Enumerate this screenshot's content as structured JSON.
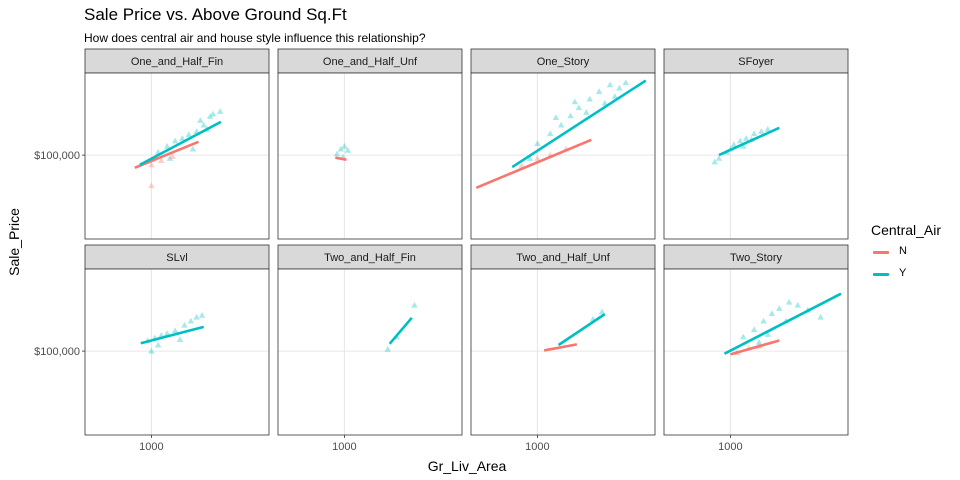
{
  "chart_data": {
    "type": "scatter",
    "title": "Sale Price vs. Above Ground Sq.Ft",
    "subtitle": "How does central air and house style influence this relationship?",
    "xlabel": "Gr_Liv_Area",
    "ylabel": "Sale_Price",
    "x_scale": "log",
    "y_scale": "log",
    "xlim": [
      390,
      5300
    ],
    "ylim": [
      27000,
      360000
    ],
    "x_ticks": [
      {
        "value": 1000,
        "label": "1000"
      }
    ],
    "y_ticks": [
      {
        "value": 100000,
        "label": "$100,000"
      }
    ],
    "grid": true,
    "facet_layout": {
      "rows": 2,
      "cols": 4
    },
    "legend": {
      "title": "Central_Air",
      "position": "right",
      "entries": [
        {
          "name": "N",
          "color": "#F8766D"
        },
        {
          "name": "Y",
          "color": "#00BFC4"
        }
      ]
    },
    "colors": {
      "N": "#F8766D",
      "Y": "#00BFC4"
    },
    "panels": [
      {
        "name": "One_and_Half_Fin",
        "lines": [
          {
            "group": "N",
            "x": [
              790,
              1950
            ],
            "y": [
              82000,
              123000
            ]
          },
          {
            "group": "Y",
            "x": [
              850,
              2680
            ],
            "y": [
              86000,
              168000
            ]
          }
        ],
        "points": [
          {
            "group": "Y",
            "x": 1100,
            "y": 105000
          },
          {
            "group": "Y",
            "x": 1250,
            "y": 115000
          },
          {
            "group": "Y",
            "x": 1400,
            "y": 125000
          },
          {
            "group": "Y",
            "x": 1550,
            "y": 130000
          },
          {
            "group": "Y",
            "x": 1700,
            "y": 138000
          },
          {
            "group": "Y",
            "x": 1900,
            "y": 145000
          },
          {
            "group": "Y",
            "x": 2100,
            "y": 160000
          },
          {
            "group": "Y",
            "x": 2400,
            "y": 190000
          },
          {
            "group": "Y",
            "x": 2650,
            "y": 198000
          },
          {
            "group": "Y",
            "x": 2300,
            "y": 183000
          },
          {
            "group": "Y",
            "x": 2000,
            "y": 172000
          },
          {
            "group": "Y",
            "x": 1300,
            "y": 95000
          },
          {
            "group": "Y",
            "x": 1800,
            "y": 110000
          },
          {
            "group": "Y",
            "x": 2200,
            "y": 150000
          },
          {
            "group": "N",
            "x": 1000,
            "y": 86000
          },
          {
            "group": "N",
            "x": 1150,
            "y": 92000
          },
          {
            "group": "N",
            "x": 1350,
            "y": 98000
          },
          {
            "group": "N",
            "x": 1000,
            "y": 62000
          }
        ]
      },
      {
        "name": "One_and_Half_Unf",
        "lines": [
          {
            "group": "N",
            "x": 880,
            "y": [
              96000,
              93000
            ],
            "x_end": 1030
          }
        ],
        "points": [
          {
            "group": "Y",
            "x": 900,
            "y": 102000
          },
          {
            "group": "Y",
            "x": 950,
            "y": 110000
          },
          {
            "group": "Y",
            "x": 1000,
            "y": 115000
          },
          {
            "group": "Y",
            "x": 1050,
            "y": 108000
          },
          {
            "group": "Y",
            "x": 980,
            "y": 97000
          }
        ]
      },
      {
        "name": "One_Story",
        "lines": [
          {
            "group": "N",
            "x": [
              420,
              2150
            ],
            "y": [
              60000,
              127000
            ]
          },
          {
            "group": "Y",
            "x": [
              700,
              4650
            ],
            "y": [
              83000,
              320000
            ]
          }
        ],
        "points": [
          {
            "group": "Y",
            "x": 1000,
            "y": 120000
          },
          {
            "group": "Y",
            "x": 1200,
            "y": 140000
          },
          {
            "group": "Y",
            "x": 1400,
            "y": 160000
          },
          {
            "group": "Y",
            "x": 1600,
            "y": 185000
          },
          {
            "group": "Y",
            "x": 1800,
            "y": 210000
          },
          {
            "group": "Y",
            "x": 2100,
            "y": 240000
          },
          {
            "group": "Y",
            "x": 2400,
            "y": 270000
          },
          {
            "group": "Y",
            "x": 2800,
            "y": 300000
          },
          {
            "group": "Y",
            "x": 3200,
            "y": 285000
          },
          {
            "group": "Y",
            "x": 3500,
            "y": 310000
          },
          {
            "group": "Y",
            "x": 1300,
            "y": 180000
          },
          {
            "group": "Y",
            "x": 1700,
            "y": 230000
          },
          {
            "group": "Y",
            "x": 2000,
            "y": 195000
          },
          {
            "group": "Y",
            "x": 900,
            "y": 95000
          },
          {
            "group": "Y",
            "x": 2600,
            "y": 225000
          },
          {
            "group": "Y",
            "x": 3000,
            "y": 250000
          },
          {
            "group": "N",
            "x": 800,
            "y": 85000
          },
          {
            "group": "N",
            "x": 1000,
            "y": 95000
          },
          {
            "group": "N",
            "x": 1200,
            "y": 100000
          },
          {
            "group": "N",
            "x": 1500,
            "y": 110000
          }
        ]
      },
      {
        "name": "SFoyer",
        "lines": [
          {
            "group": "Y",
            "x": [
              850,
              2000
            ],
            "y": [
              100000,
              153000
            ]
          }
        ],
        "points": [
          {
            "group": "Y",
            "x": 850,
            "y": 95000
          },
          {
            "group": "Y",
            "x": 950,
            "y": 105000
          },
          {
            "group": "Y",
            "x": 1050,
            "y": 118000
          },
          {
            "group": "Y",
            "x": 1150,
            "y": 125000
          },
          {
            "group": "Y",
            "x": 1250,
            "y": 130000
          },
          {
            "group": "Y",
            "x": 1400,
            "y": 140000
          },
          {
            "group": "Y",
            "x": 1550,
            "y": 145000
          },
          {
            "group": "Y",
            "x": 1700,
            "y": 150000
          },
          {
            "group": "Y",
            "x": 1200,
            "y": 115000
          },
          {
            "group": "Y",
            "x": 1000,
            "y": 110000
          },
          {
            "group": "Y",
            "x": 1350,
            "y": 128000
          },
          {
            "group": "Y",
            "x": 800,
            "y": 90000
          }
        ]
      },
      {
        "name": "SLvl",
        "lines": [
          {
            "group": "Y",
            "x": [
              860,
              2100
            ],
            "y": [
              113000,
              146000
            ]
          }
        ],
        "points": [
          {
            "group": "Y",
            "x": 950,
            "y": 118000
          },
          {
            "group": "Y",
            "x": 1050,
            "y": 123000
          },
          {
            "group": "Y",
            "x": 1150,
            "y": 128000
          },
          {
            "group": "Y",
            "x": 1250,
            "y": 132000
          },
          {
            "group": "Y",
            "x": 1400,
            "y": 138000
          },
          {
            "group": "Y",
            "x": 1600,
            "y": 150000
          },
          {
            "group": "Y",
            "x": 1900,
            "y": 170000
          },
          {
            "group": "Y",
            "x": 1750,
            "y": 160000
          },
          {
            "group": "Y",
            "x": 2050,
            "y": 175000
          },
          {
            "group": "Y",
            "x": 1000,
            "y": 100000
          },
          {
            "group": "Y",
            "x": 1100,
            "y": 110000
          },
          {
            "group": "Y",
            "x": 1500,
            "y": 120000
          }
        ]
      },
      {
        "name": "Two_and_Half_Fin",
        "lines": [
          {
            "group": "Y",
            "x": [
              1900,
              2600
            ],
            "y": [
              112000,
              168000
            ]
          }
        ],
        "points": [
          {
            "group": "Y",
            "x": 1850,
            "y": 103000
          },
          {
            "group": "Y",
            "x": 2100,
            "y": 125000
          },
          {
            "group": "Y",
            "x": 2700,
            "y": 205000
          }
        ]
      },
      {
        "name": "Two_and_Half_Unf",
        "lines": [
          {
            "group": "N",
            "x": [
              1100,
              1750
            ],
            "y": [
              101000,
              111000
            ]
          },
          {
            "group": "Y",
            "x": [
              1350,
              2600
            ],
            "y": [
              110000,
              178000
            ]
          }
        ],
        "points": [
          {
            "group": "Y",
            "x": 2200,
            "y": 165000
          },
          {
            "group": "Y",
            "x": 2500,
            "y": 185000
          }
        ]
      },
      {
        "name": "Two_Story",
        "lines": [
          {
            "group": "N",
            "x": [
              1000,
              2000
            ],
            "y": [
              95000,
              118000
            ]
          },
          {
            "group": "Y",
            "x": [
              920,
              4800
            ],
            "y": [
              96000,
              245000
            ]
          }
        ],
        "points": [
          {
            "group": "Y",
            "x": 1200,
            "y": 125000
          },
          {
            "group": "Y",
            "x": 1400,
            "y": 140000
          },
          {
            "group": "Y",
            "x": 1600,
            "y": 160000
          },
          {
            "group": "Y",
            "x": 1800,
            "y": 180000
          },
          {
            "group": "Y",
            "x": 2000,
            "y": 195000
          },
          {
            "group": "Y",
            "x": 2300,
            "y": 215000
          },
          {
            "group": "Y",
            "x": 2600,
            "y": 205000
          },
          {
            "group": "Y",
            "x": 3000,
            "y": 190000
          },
          {
            "group": "Y",
            "x": 3600,
            "y": 170000
          },
          {
            "group": "Y",
            "x": 2200,
            "y": 160000
          },
          {
            "group": "Y",
            "x": 1700,
            "y": 130000
          },
          {
            "group": "Y",
            "x": 1500,
            "y": 115000
          },
          {
            "group": "N",
            "x": 1100,
            "y": 98000
          },
          {
            "group": "N",
            "x": 1300,
            "y": 105000
          },
          {
            "group": "N",
            "x": 1500,
            "y": 108000
          }
        ]
      }
    ]
  }
}
